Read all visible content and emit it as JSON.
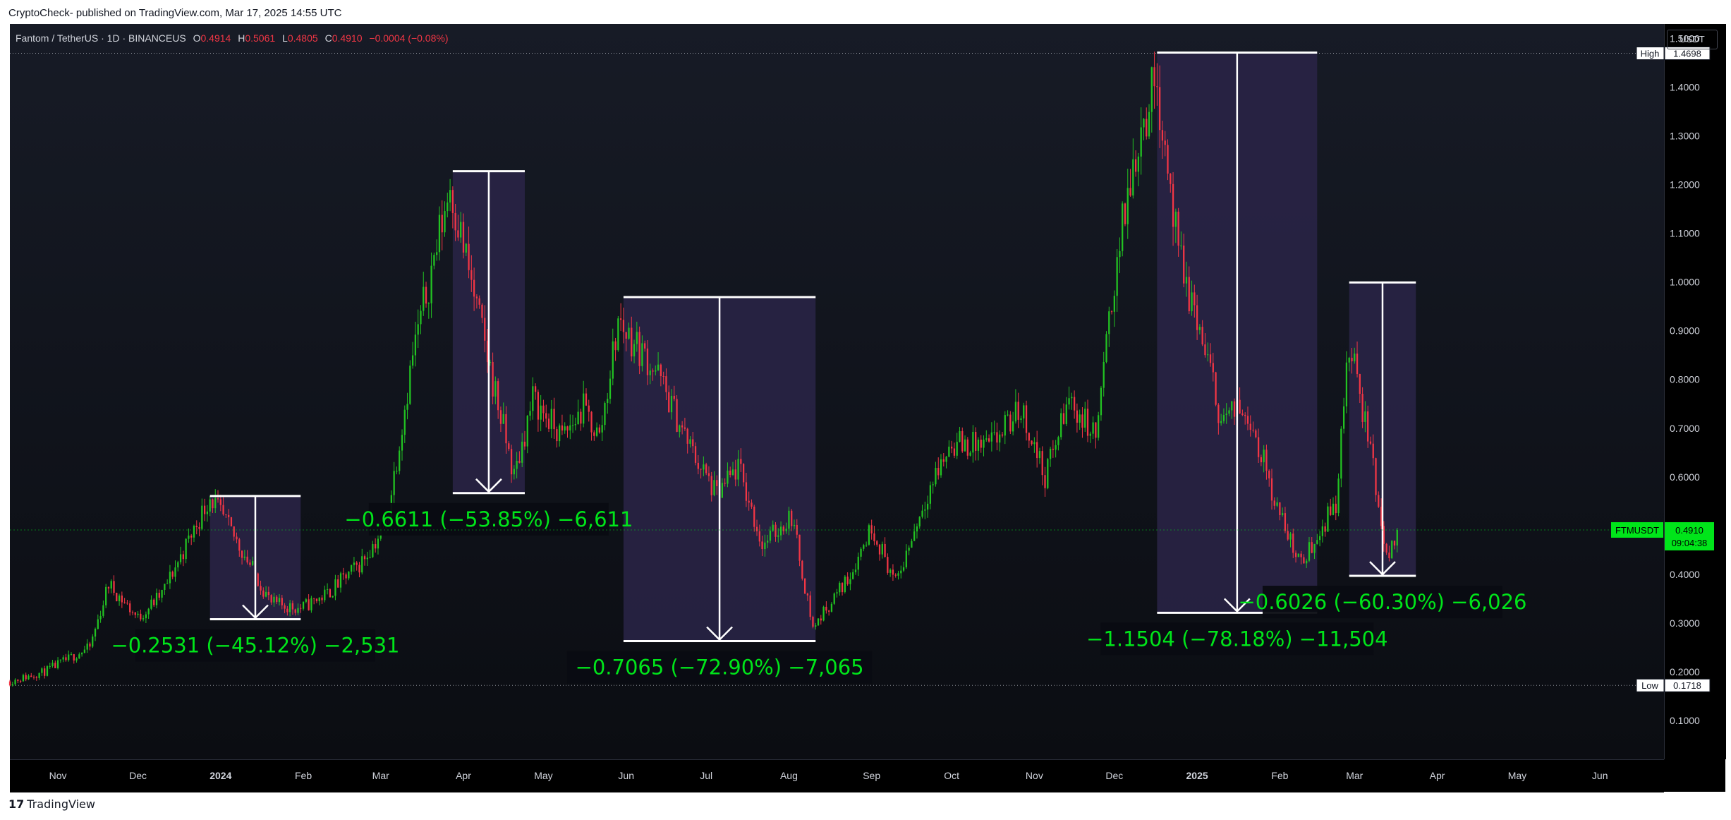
{
  "caption": "CryptoCheck- published on TradingView.com, Mar 17, 2025 14:55 UTC",
  "symbol": {
    "name": "Fantom / TetherUS · 1D · BINANCEUS",
    "open_label": "O",
    "open": "0.4914",
    "high_label": "H",
    "high": "0.5061",
    "low_label": "L",
    "low": "0.4805",
    "close_label": "C",
    "close": "0.4910",
    "change": "−0.0004 (−0.08%)"
  },
  "currency": "USDT",
  "high_marker": {
    "label": "High",
    "value": "1.4698"
  },
  "low_marker": {
    "label": "Low",
    "value": "0.1718"
  },
  "last_price": {
    "ticker": "FTMUSDT",
    "value": "0.4910",
    "countdown": "09:04:38"
  },
  "footer": {
    "logo": "17",
    "brand": "TradingView"
  },
  "colors": {
    "up": "#22c322",
    "down": "#f23645",
    "accent_green": "#00e51a",
    "box_fill": "#2a2448",
    "axis_text": "#d1d4dc"
  },
  "chart_data": {
    "type": "candlestick",
    "y_scale": "linear",
    "ylim": [
      0.02,
      1.53
    ],
    "y_ticks": [
      "1.5000",
      "1.4000",
      "1.3000",
      "1.2000",
      "1.1000",
      "1.0000",
      "0.9000",
      "0.8000",
      "0.7000",
      "0.6000",
      "0.5000",
      "0.4000",
      "0.3000",
      "0.2000",
      "0.1000"
    ],
    "x_ticks": [
      {
        "label": "Nov",
        "date": "2023-11-01",
        "bold": false
      },
      {
        "label": "Dec",
        "date": "2023-12-01",
        "bold": false
      },
      {
        "label": "2024",
        "date": "2024-01-01",
        "bold": true
      },
      {
        "label": "Feb",
        "date": "2024-02-01",
        "bold": false
      },
      {
        "label": "Mar",
        "date": "2024-03-01",
        "bold": false
      },
      {
        "label": "Apr",
        "date": "2024-04-01",
        "bold": false
      },
      {
        "label": "May",
        "date": "2024-05-01",
        "bold": false
      },
      {
        "label": "Jun",
        "date": "2024-06-01",
        "bold": false
      },
      {
        "label": "Jul",
        "date": "2024-07-01",
        "bold": false
      },
      {
        "label": "Aug",
        "date": "2024-08-01",
        "bold": false
      },
      {
        "label": "Sep",
        "date": "2024-09-01",
        "bold": false
      },
      {
        "label": "Oct",
        "date": "2024-10-01",
        "bold": false
      },
      {
        "label": "Nov",
        "date": "2024-11-01",
        "bold": false
      },
      {
        "label": "Dec",
        "date": "2024-12-01",
        "bold": false
      },
      {
        "label": "2025",
        "date": "2025-01-01",
        "bold": true
      },
      {
        "label": "Feb",
        "date": "2025-02-01",
        "bold": false
      },
      {
        "label": "Mar",
        "date": "2025-03-01",
        "bold": false
      },
      {
        "label": "Apr",
        "date": "2025-04-01",
        "bold": false
      },
      {
        "label": "May",
        "date": "2025-05-01",
        "bold": false
      },
      {
        "label": "Jun",
        "date": "2025-06-01",
        "bold": false
      }
    ],
    "x_range": [
      "2023-10-14",
      "2025-06-25"
    ],
    "price_path": [
      [
        "2023-10-14",
        0.18
      ],
      [
        "2023-10-27",
        0.2
      ],
      [
        "2023-11-13",
        0.25
      ],
      [
        "2023-11-20",
        0.38
      ],
      [
        "2023-12-01",
        0.31
      ],
      [
        "2023-12-10",
        0.36
      ],
      [
        "2023-12-20",
        0.47
      ],
      [
        "2023-12-28",
        0.56
      ],
      [
        "2024-01-10",
        0.44
      ],
      [
        "2024-01-20",
        0.34
      ],
      [
        "2024-01-31",
        0.33
      ],
      [
        "2024-02-10",
        0.36
      ],
      [
        "2024-02-22",
        0.42
      ],
      [
        "2024-03-03",
        0.5
      ],
      [
        "2024-03-13",
        0.85
      ],
      [
        "2024-03-27",
        1.2
      ],
      [
        "2024-04-07",
        0.92
      ],
      [
        "2024-04-20",
        0.6
      ],
      [
        "2024-04-27",
        0.76
      ],
      [
        "2024-05-08",
        0.68
      ],
      [
        "2024-05-16",
        0.74
      ],
      [
        "2024-05-22",
        0.68
      ],
      [
        "2024-05-29",
        0.92
      ],
      [
        "2024-06-12",
        0.82
      ],
      [
        "2024-06-25",
        0.66
      ],
      [
        "2024-07-05",
        0.56
      ],
      [
        "2024-07-13",
        0.62
      ],
      [
        "2024-07-22",
        0.46
      ],
      [
        "2024-08-02",
        0.52
      ],
      [
        "2024-08-10",
        0.29
      ],
      [
        "2024-08-24",
        0.4
      ],
      [
        "2024-09-01",
        0.5
      ],
      [
        "2024-09-10",
        0.38
      ],
      [
        "2024-09-22",
        0.57
      ],
      [
        "2024-10-01",
        0.67
      ],
      [
        "2024-10-15",
        0.66
      ],
      [
        "2024-10-27",
        0.74
      ],
      [
        "2024-11-05",
        0.6
      ],
      [
        "2024-11-14",
        0.76
      ],
      [
        "2024-11-24",
        0.68
      ],
      [
        "2024-12-02",
        1.05
      ],
      [
        "2024-12-10",
        1.3
      ],
      [
        "2024-12-17",
        1.42
      ],
      [
        "2024-12-25",
        1.05
      ],
      [
        "2025-01-02",
        0.9
      ],
      [
        "2025-01-10",
        0.72
      ],
      [
        "2025-01-20",
        0.74
      ],
      [
        "2025-02-01",
        0.52
      ],
      [
        "2025-02-09",
        0.42
      ],
      [
        "2025-02-14",
        0.47
      ],
      [
        "2025-02-22",
        0.55
      ],
      [
        "2025-02-27",
        0.87
      ],
      [
        "2025-03-07",
        0.66
      ],
      [
        "2025-03-13",
        0.43
      ],
      [
        "2025-03-17",
        0.49
      ]
    ],
    "high": {
      "label": "High",
      "value": 1.4698
    },
    "low": {
      "label": "Low",
      "value": 0.1718
    },
    "last_price": 0.491,
    "measurements": [
      {
        "start": "2023-12-28",
        "end": "2024-01-31",
        "top": 0.5607,
        "bottom": 0.3076,
        "label": "−0.2531 (−45.12%) −2,531",
        "change": -0.2531,
        "pct": -45.12,
        "ticks": -2531,
        "label_pos": "below"
      },
      {
        "start": "2024-03-28",
        "end": "2024-04-24",
        "top": 1.2277,
        "bottom": 0.5666,
        "label": "−0.6611 (−53.85%) −6,611",
        "change": -0.6611,
        "pct": -53.85,
        "ticks": -6611,
        "label_pos": "below"
      },
      {
        "start": "2024-05-31",
        "end": "2024-08-11",
        "top": 0.9692,
        "bottom": 0.2627,
        "label": "−0.7065 (−72.90%) −7,065",
        "change": -0.7065,
        "pct": -72.9,
        "ticks": -7065,
        "label_pos": "below"
      },
      {
        "start": "2024-12-17",
        "end": "2025-02-15",
        "top": 1.4713,
        "bottom": 0.3209,
        "label": "−1.1504 (−78.18%) −11,504",
        "change": -1.1504,
        "pct": -78.18,
        "ticks": -11504,
        "label_pos": "below"
      },
      {
        "start": "2025-02-27",
        "end": "2025-03-24",
        "top": 0.9993,
        "bottom": 0.3967,
        "label": "−0.6026 (−60.30%) −6,026",
        "change": -0.6026,
        "pct": -60.3,
        "ticks": -6026,
        "label_pos": "below"
      }
    ]
  }
}
